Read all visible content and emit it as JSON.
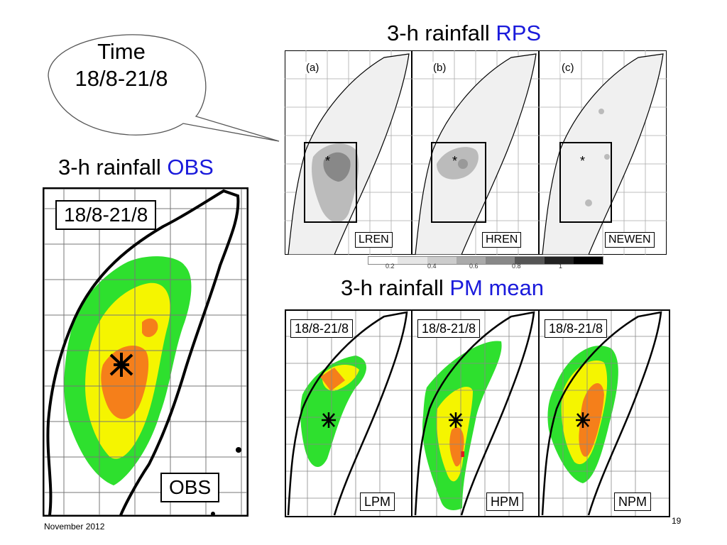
{
  "bubble": {
    "line1": "Time",
    "line2": "18/8-21/8"
  },
  "titles": {
    "rps_prefix": "3-h rainfall ",
    "rps_accent": "RPS",
    "obs_prefix": "3-h rainfall ",
    "obs_accent": "OBS",
    "pm_prefix": "3-h rainfall ",
    "pm_accent": "PM mean"
  },
  "obs_panel": {
    "date": "18/8-21/8",
    "label": "OBS"
  },
  "rps_panels": [
    {
      "letter": "(a)",
      "label": "LREN",
      "marker": "*"
    },
    {
      "letter": "(b)",
      "label": "HREN",
      "marker": "*"
    },
    {
      "letter": "(c)",
      "label": "NEWEN",
      "marker": "*"
    }
  ],
  "colorbar_ticks": [
    "0.2",
    "0.4",
    "0.6",
    "0.8",
    "1"
  ],
  "pm_panels": [
    {
      "date": "18/8-21/8",
      "label": "LPM"
    },
    {
      "date": "18/8-21/8",
      "label": "HPM"
    },
    {
      "date": "18/8-21/8",
      "label": "NPM"
    }
  ],
  "footer": {
    "date": "November 2012",
    "page": "19"
  },
  "colors": {
    "accent": "#1a1adb",
    "green": "#2ee02e",
    "yellow": "#f5f500",
    "orange": "#f57f1a",
    "red": "#e01a1a",
    "land_grey": "#f0f0f0"
  }
}
